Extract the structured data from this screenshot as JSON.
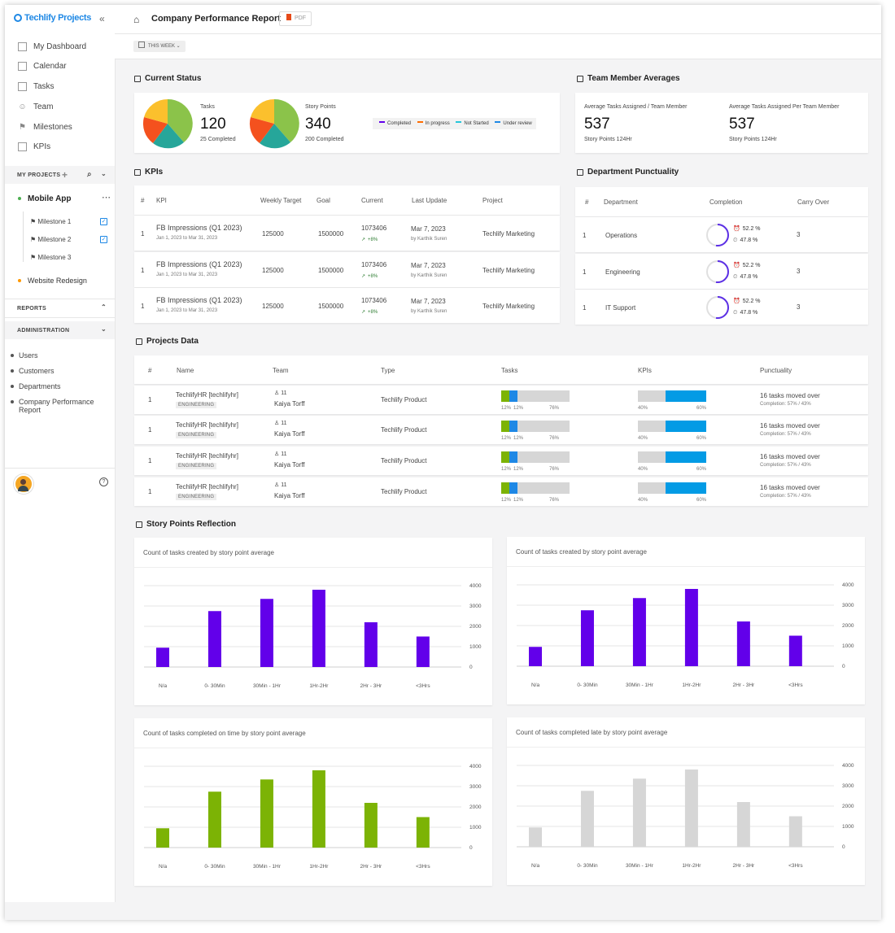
{
  "app": {
    "name": "Techlify Projects"
  },
  "nav": [
    {
      "label": "My Dashboard",
      "icon": "dashboard-icon"
    },
    {
      "label": "Calendar",
      "icon": "calendar-icon"
    },
    {
      "label": "Tasks",
      "icon": "tasks-icon"
    },
    {
      "label": "Team",
      "icon": "team-icon"
    },
    {
      "label": "Milestones",
      "icon": "flag-icon"
    },
    {
      "label": "KPIs",
      "icon": "kpi-icon"
    }
  ],
  "my_projects": {
    "label": "MY PROJECTS",
    "projects": [
      {
        "name": "Mobile App",
        "color": "#4caf50",
        "milestones": [
          "Milestone 1",
          "Milestone 2",
          "Milestone 3"
        ]
      },
      {
        "name": "Website Redesign",
        "color": "#ff9800"
      }
    ]
  },
  "reports": {
    "label": "REPORTS"
  },
  "administration": {
    "label": "ADMINISTRATION",
    "items": [
      "Users",
      "Customers",
      "Departments",
      "Company Performance Report"
    ]
  },
  "header": {
    "title": "Company Performance Report",
    "pdf_label": "PDF"
  },
  "filter": {
    "label": "THIS WEEK"
  },
  "current_status": {
    "title": "Current Status",
    "tasks": {
      "label": "Tasks",
      "value": "120",
      "completed": "25 Completed"
    },
    "story_points": {
      "label": "Story Points",
      "value": "340",
      "completed": "200 Completed"
    },
    "legend": [
      {
        "label": "Completed",
        "color": "#6200ea"
      },
      {
        "label": "In progress",
        "color": "#ff6d00"
      },
      {
        "label": "Not Started",
        "color": "#26c6da"
      },
      {
        "label": "Under review",
        "color": "#1e88e5"
      }
    ]
  },
  "team_averages": {
    "title": "Team Member Averages",
    "items": [
      {
        "label": "Average Tasks Assigned / Team Member",
        "value": "537",
        "sub": "Story Points 124Hr"
      },
      {
        "label": "Average Tasks Assigned Per Team Member",
        "value": "537",
        "sub": "Story Points 124Hr"
      }
    ]
  },
  "kpis": {
    "title": "KPIs",
    "headers": [
      "#",
      "KPI",
      "Weekly Target",
      "Goal",
      "Current",
      "Last Update",
      "Project"
    ],
    "rows": [
      {
        "num": "1",
        "kpi": "FB Impressions (Q1 2023)",
        "dates": "Jan 1, 2023 to Mar 31, 2023",
        "target": "125000",
        "goal": "1500000",
        "current": "1073406",
        "change": "+8%",
        "update": "Mar 7, 2023",
        "by": "by Karthik Suren",
        "project": "Techlify Marketing"
      },
      {
        "num": "1",
        "kpi": "FB Impressions (Q1 2023)",
        "dates": "Jan 1, 2023 to Mar 31, 2023",
        "target": "125000",
        "goal": "1500000",
        "current": "1073406",
        "change": "+8%",
        "update": "Mar 7, 2023",
        "by": "by Karthik Suren",
        "project": "Techlify Marketing"
      },
      {
        "num": "1",
        "kpi": "FB Impressions (Q1 2023)",
        "dates": "Jan 1, 2023 to Mar 31, 2023",
        "target": "125000",
        "goal": "1500000",
        "current": "1073406",
        "change": "+8%",
        "update": "Mar 7, 2023",
        "by": "by Karthik Suren",
        "project": "Techlify Marketing"
      }
    ]
  },
  "punctuality": {
    "title": "Department Punctuality",
    "headers": [
      "#",
      "Department",
      "Completion",
      "Carry Over"
    ],
    "rows": [
      {
        "num": "1",
        "dept": "Operations",
        "on_time": "52.2 %",
        "late": "47.8 %",
        "carry": "3",
        "fraction": 0.522
      },
      {
        "num": "1",
        "dept": "Engineering",
        "on_time": "52.2 %",
        "late": "47.8 %",
        "carry": "3",
        "fraction": 0.522
      },
      {
        "num": "1",
        "dept": "IT Support",
        "on_time": "52.2 %",
        "late": "47.8 %",
        "carry": "3",
        "fraction": 0.522
      }
    ]
  },
  "projects_data": {
    "title": "Projects Data",
    "headers": [
      "#",
      "Name",
      "Team",
      "Type",
      "Tasks",
      "KPIs",
      "Punctuality"
    ],
    "rows": [
      {
        "num": "1",
        "name": "TechlifyHR [techlifyhr]",
        "dept": "ENGINEERING",
        "team_count": "11",
        "lead": "Kaiya Torff",
        "type": "Techlify Product",
        "tasks": [
          12,
          12,
          76
        ],
        "tasks_labels": [
          "12%",
          "12%",
          "76%"
        ],
        "kpis": [
          40,
          60
        ],
        "kpi_labels": [
          "40%",
          "60%"
        ],
        "punct": "16 tasks moved over",
        "punct_sub": "Completion: 57% / 43%"
      },
      {
        "num": "1",
        "name": "TechlifyHR [techlifyhr]",
        "dept": "ENGINEERING",
        "team_count": "11",
        "lead": "Kaiya Torff",
        "type": "Techlify Product",
        "tasks": [
          12,
          12,
          76
        ],
        "tasks_labels": [
          "12%",
          "12%",
          "76%"
        ],
        "kpis": [
          40,
          60
        ],
        "kpi_labels": [
          "40%",
          "60%"
        ],
        "punct": "16 tasks moved over",
        "punct_sub": "Completion: 57% / 43%"
      },
      {
        "num": "1",
        "name": "TechlifyHR [techlifyhr]",
        "dept": "ENGINEERING",
        "team_count": "11",
        "lead": "Kaiya Torff",
        "type": "Techlify Product",
        "tasks": [
          12,
          12,
          76
        ],
        "tasks_labels": [
          "12%",
          "12%",
          "76%"
        ],
        "kpis": [
          40,
          60
        ],
        "kpi_labels": [
          "40%",
          "60%"
        ],
        "punct": "16 tasks moved over",
        "punct_sub": "Completion: 57% / 43%"
      },
      {
        "num": "1",
        "name": "TechlifyHR [techlifyhr]",
        "dept": "ENGINEERING",
        "team_count": "11",
        "lead": "Kaiya Torff",
        "type": "Techlify Product",
        "tasks": [
          12,
          12,
          76
        ],
        "tasks_labels": [
          "12%",
          "12%",
          "76%"
        ],
        "kpis": [
          40,
          60
        ],
        "kpi_labels": [
          "40%",
          "60%"
        ],
        "punct": "16 tasks moved over",
        "punct_sub": "Completion: 57% / 43%"
      }
    ]
  },
  "story_points_reflection": {
    "title": "Story Points Reflection"
  },
  "chart_data": [
    {
      "type": "bar",
      "title": "Count of tasks created by story point average",
      "categories": [
        "N/a",
        "0- 30Min",
        "30Min - 1Hr",
        "1Hr-2Hr",
        "2Hr - 3Hr",
        "<3Hrs"
      ],
      "values": [
        950,
        2750,
        3350,
        3800,
        2200,
        1500
      ],
      "ylim": [
        0,
        4000
      ],
      "yticks": [
        "0",
        "1000",
        "2000",
        "3000",
        "4000"
      ],
      "color": "#6200ea"
    },
    {
      "type": "bar",
      "title": "Count of tasks created by story point average",
      "categories": [
        "N/a",
        "0- 30Min",
        "30Min - 1Hr",
        "1Hr-2Hr",
        "2Hr - 3Hr",
        "<3Hrs"
      ],
      "values": [
        950,
        2750,
        3350,
        3800,
        2200,
        1500
      ],
      "ylim": [
        0,
        4000
      ],
      "yticks": [
        "0",
        "1000",
        "2000",
        "3000",
        "4000"
      ],
      "color": "#6200ea"
    },
    {
      "type": "bar",
      "title": "Count of tasks completed on time by story point average",
      "categories": [
        "N/a",
        "0- 30Min",
        "30Min - 1Hr",
        "1Hr-2Hr",
        "2Hr - 3Hr",
        "<3Hrs"
      ],
      "values": [
        950,
        2750,
        3350,
        3800,
        2200,
        1500
      ],
      "ylim": [
        0,
        4000
      ],
      "yticks": [
        "0",
        "1000",
        "2000",
        "3000",
        "4000"
      ],
      "color": "#7cb305"
    },
    {
      "type": "bar",
      "title": "Count of tasks completed late by story point average",
      "categories": [
        "N/a",
        "0- 30Min",
        "30Min - 1Hr",
        "1Hr-2Hr",
        "2Hr - 3Hr",
        "<3Hrs"
      ],
      "values": [
        950,
        2750,
        3350,
        3800,
        2200,
        1500
      ],
      "ylim": [
        0,
        4000
      ],
      "yticks": [
        "0",
        "1000",
        "2000",
        "3000",
        "4000"
      ],
      "color": "#d6d6d6"
    }
  ]
}
